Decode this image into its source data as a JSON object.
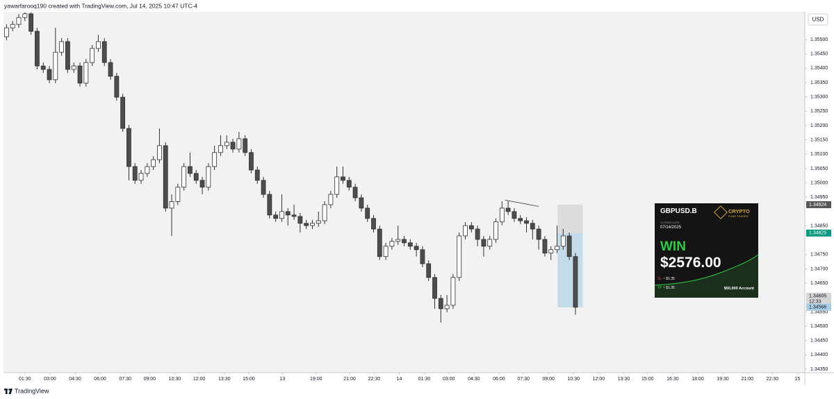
{
  "header": "yawarfarooq190 created with TradingView.com, Jul 14, 2025 10:47 UTC-4",
  "footer": "TradingView",
  "chart_data": {
    "type": "candlestick",
    "currency": "USD",
    "up_color": "#ffffff",
    "down_color": "#4d4d4d",
    "outline_color": "#2f2f2f",
    "grid": false,
    "xlim": [
      0,
      131
    ],
    "ylim": [
      1.34338,
      1.35597
    ],
    "xticks": [
      {
        "value": 3.5,
        "label": "01:30"
      },
      {
        "value": 7.6,
        "label": "03:00"
      },
      {
        "value": 11.7,
        "label": "04:30"
      },
      {
        "value": 15.8,
        "label": "06:00"
      },
      {
        "value": 19.9,
        "label": "07:30"
      },
      {
        "value": 23.9,
        "label": "09:00"
      },
      {
        "value": 28,
        "label": "10:30"
      },
      {
        "value": 32,
        "label": "12:00"
      },
      {
        "value": 36.1,
        "label": "13:30"
      },
      {
        "value": 40.1,
        "label": "15:00"
      },
      {
        "value": 45.6,
        "label": "13"
      },
      {
        "value": 51.1,
        "label": "19:00"
      },
      {
        "value": 56.6,
        "label": "21:00"
      },
      {
        "value": 60.6,
        "label": "22:30"
      },
      {
        "value": 64.7,
        "label": "14"
      },
      {
        "value": 68.8,
        "label": "01:30"
      },
      {
        "value": 72.8,
        "label": "03:00"
      },
      {
        "value": 76.9,
        "label": "04:30"
      },
      {
        "value": 81,
        "label": "06:00"
      },
      {
        "value": 85,
        "label": "07:30"
      },
      {
        "value": 89.1,
        "label": "09:00"
      },
      {
        "value": 93.2,
        "label": "10:30"
      },
      {
        "value": 97.3,
        "label": "12:00"
      },
      {
        "value": 101.4,
        "label": "13:30"
      },
      {
        "value": 105.3,
        "label": "15:00"
      },
      {
        "value": 109.4,
        "label": "16:30"
      },
      {
        "value": 113.5,
        "label": "18:00"
      },
      {
        "value": 117.6,
        "label": "19:30"
      },
      {
        "value": 121.6,
        "label": "21:00"
      },
      {
        "value": 125.7,
        "label": "22:30"
      },
      {
        "value": 129.8,
        "label": "15"
      }
    ],
    "yticks": [
      {
        "value": 1.355,
        "label": "1.35500"
      },
      {
        "value": 1.3545,
        "label": "1.35450"
      },
      {
        "value": 1.354,
        "label": "1.35400"
      },
      {
        "value": 1.3535,
        "label": "1.35350"
      },
      {
        "value": 1.353,
        "label": "1.35300"
      },
      {
        "value": 1.3525,
        "label": "1.35250"
      },
      {
        "value": 1.352,
        "label": "1.35200"
      },
      {
        "value": 1.3515,
        "label": "1.35150"
      },
      {
        "value": 1.351,
        "label": "1.35100"
      },
      {
        "value": 1.3505,
        "label": "1.35050"
      },
      {
        "value": 1.35,
        "label": "1.35000"
      },
      {
        "value": 1.3495,
        "label": "1.34950"
      },
      {
        "value": 1.3485,
        "label": "1.34850"
      },
      {
        "value": 1.3475,
        "label": "1.34750"
      },
      {
        "value": 1.347,
        "label": "1.34700"
      },
      {
        "value": 1.3465,
        "label": "1.34650"
      },
      {
        "value": 1.3455,
        "label": "1.34550"
      },
      {
        "value": 1.345,
        "label": "1.34500"
      },
      {
        "value": 1.3445,
        "label": "1.34450"
      },
      {
        "value": 1.344,
        "label": "1.34400"
      },
      {
        "value": 1.3435,
        "label": "1.34350"
      }
    ],
    "x": [
      0.5,
      1.5,
      2.5,
      3.5,
      4.5,
      5.5,
      6.5,
      7.5,
      8.5,
      9.5,
      10.5,
      11.5,
      12.5,
      13.5,
      14.5,
      15.5,
      16.5,
      17.5,
      18.5,
      19.5,
      20.5,
      21.5,
      22.5,
      23.5,
      24.5,
      25.5,
      26.5,
      27.5,
      28.5,
      29.5,
      30.5,
      31.5,
      32.5,
      33.5,
      34.5,
      35.5,
      36.5,
      37.5,
      38.5,
      39.5,
      40.5,
      41.5,
      42.5,
      43.5,
      44.5,
      45.5,
      46.5,
      47.5,
      48.5,
      49.5,
      50.5,
      51.5,
      52.5,
      53.5,
      54.5,
      55.5,
      56.5,
      57.5,
      58.5,
      59.5,
      60.5,
      61.5,
      62.5,
      63.5,
      64.5,
      65.5,
      66.5,
      67.5,
      68.5,
      69.5,
      70.5,
      71.5,
      72.5,
      73.5,
      74.5,
      75.5,
      76.5,
      77.5,
      78.5,
      79.5,
      80.5,
      81.5,
      82.5,
      83.5,
      84.5,
      85.5,
      86.5,
      87.5,
      88.5,
      89.5,
      90.5,
      91.5,
      92.5,
      93.5
    ],
    "open": [
      1.3551,
      1.35541,
      1.35553,
      1.35577,
      1.3559,
      1.35529,
      1.35408,
      1.35396,
      1.3536,
      1.35456,
      1.35493,
      1.35396,
      1.35408,
      1.35348,
      1.3542,
      1.35469,
      1.35493,
      1.3542,
      1.35372,
      1.35299,
      1.3519,
      1.35057,
      1.35009,
      1.35033,
      1.35057,
      1.35081,
      1.3513,
      1.34912,
      1.34935,
      1.34985,
      1.35057,
      1.35033,
      1.35009,
      1.34985,
      1.35057,
      1.35106,
      1.3513,
      1.35142,
      1.35118,
      1.35154,
      1.35106,
      1.35045,
      1.35009,
      1.3496,
      1.34888,
      1.34876,
      1.349,
      1.34888,
      1.34883,
      1.34859,
      1.34851,
      1.34859,
      1.34868,
      1.34924,
      1.3496,
      1.35021,
      1.35009,
      1.34985,
      1.34948,
      1.34912,
      1.34876,
      1.34839,
      1.34743,
      1.34779,
      1.34796,
      1.34803,
      1.34791,
      1.34779,
      1.34767,
      1.34718,
      1.3467,
      1.34597,
      1.34561,
      1.34573,
      1.3467,
      1.34815,
      1.34851,
      1.34839,
      1.34803,
      1.34779,
      1.34803,
      1.34864,
      1.34912,
      1.349,
      1.34876,
      1.34868,
      1.34859,
      1.34839,
      1.34803,
      1.34755,
      1.34767,
      1.34779,
      1.34815,
      1.34743
    ],
    "high": [
      1.35553,
      1.35565,
      1.35589,
      1.35595,
      1.35595,
      1.35541,
      1.3542,
      1.35408,
      1.35541,
      1.35505,
      1.35505,
      1.3542,
      1.3542,
      1.35432,
      1.35481,
      1.35517,
      1.35505,
      1.35432,
      1.35384,
      1.35311,
      1.35202,
      1.35069,
      1.35045,
      1.35069,
      1.35093,
      1.3519,
      1.35142,
      1.3496,
      1.34997,
      1.35069,
      1.35106,
      1.35045,
      1.35021,
      1.35069,
      1.3513,
      1.35166,
      1.35166,
      1.35154,
      1.35178,
      1.35166,
      1.35118,
      1.35057,
      1.35021,
      1.34972,
      1.349,
      1.3496,
      1.34912,
      1.34924,
      1.34895,
      1.34871,
      1.34871,
      1.349,
      1.34936,
      1.34972,
      1.35057,
      1.35057,
      1.35021,
      1.34997,
      1.3496,
      1.34924,
      1.34888,
      1.34851,
      1.34791,
      1.34808,
      1.34851,
      1.34815,
      1.34803,
      1.34791,
      1.34779,
      1.3473,
      1.34682,
      1.34609,
      1.34609,
      1.34682,
      1.34827,
      1.34863,
      1.34863,
      1.34851,
      1.34815,
      1.34815,
      1.34876,
      1.34936,
      1.34936,
      1.34912,
      1.34888,
      1.3488,
      1.34871,
      1.34851,
      1.34815,
      1.34779,
      1.34851,
      1.3484,
      1.34827,
      1.34755
    ],
    "low": [
      1.35498,
      1.35529,
      1.35541,
      1.35565,
      1.35517,
      1.35396,
      1.35384,
      1.35348,
      1.35348,
      1.35444,
      1.35384,
      1.35384,
      1.35336,
      1.35336,
      1.35408,
      1.35457,
      1.35408,
      1.3536,
      1.35287,
      1.35178,
      1.35009,
      1.34997,
      1.34997,
      1.35021,
      1.35045,
      1.35069,
      1.349,
      1.34815,
      1.34923,
      1.34973,
      1.35021,
      1.34997,
      1.3496,
      1.34973,
      1.35045,
      1.35094,
      1.35118,
      1.35106,
      1.35106,
      1.35094,
      1.35033,
      1.34997,
      1.34948,
      1.34876,
      1.34864,
      1.34864,
      1.34851,
      1.34871,
      1.34827,
      1.34839,
      1.34839,
      1.34847,
      1.34856,
      1.34912,
      1.34948,
      1.34997,
      1.34973,
      1.34936,
      1.349,
      1.34864,
      1.34827,
      1.34731,
      1.34731,
      1.34767,
      1.34784,
      1.34779,
      1.34767,
      1.34743,
      1.34706,
      1.34658,
      1.34561,
      1.34513,
      1.34549,
      1.34561,
      1.34658,
      1.34803,
      1.34827,
      1.34779,
      1.34743,
      1.34767,
      1.34791,
      1.34852,
      1.34888,
      1.34864,
      1.34856,
      1.34827,
      1.34803,
      1.34767,
      1.34743,
      1.34731,
      1.34755,
      1.34767,
      1.34731,
      1.3454
    ],
    "close": [
      1.35541,
      1.35553,
      1.35577,
      1.3559,
      1.35529,
      1.35408,
      1.35396,
      1.3536,
      1.35456,
      1.35493,
      1.35396,
      1.35408,
      1.35348,
      1.3542,
      1.35469,
      1.35493,
      1.3542,
      1.35372,
      1.35299,
      1.3519,
      1.35057,
      1.35009,
      1.35033,
      1.35057,
      1.35081,
      1.3513,
      1.34912,
      1.34935,
      1.34985,
      1.35057,
      1.35033,
      1.35009,
      1.34985,
      1.35057,
      1.35106,
      1.3513,
      1.35142,
      1.35118,
      1.35154,
      1.35106,
      1.35045,
      1.35009,
      1.3496,
      1.34888,
      1.34876,
      1.349,
      1.34888,
      1.34883,
      1.34859,
      1.34851,
      1.34859,
      1.34868,
      1.34924,
      1.3496,
      1.35021,
      1.35009,
      1.34985,
      1.34948,
      1.34912,
      1.34876,
      1.34839,
      1.34743,
      1.34779,
      1.34796,
      1.34803,
      1.34791,
      1.34779,
      1.34767,
      1.34718,
      1.3467,
      1.34597,
      1.34561,
      1.34573,
      1.3467,
      1.34815,
      1.34851,
      1.34839,
      1.34803,
      1.34779,
      1.34803,
      1.34864,
      1.34912,
      1.349,
      1.34876,
      1.34868,
      1.34859,
      1.34839,
      1.34803,
      1.34755,
      1.34767,
      1.34779,
      1.34815,
      1.34743,
      1.34566
    ],
    "position": {
      "x": [
        90.6,
        94.7
      ],
      "stop": 1.34924,
      "entry": 1.34825,
      "target": 1.34566
    },
    "trend_line": {
      "x": [
        82,
        87.5
      ],
      "y": [
        1.3494,
        1.34918
      ]
    },
    "price_labels": [
      {
        "value": 1.34924,
        "color": "#575757",
        "text_color": "#ffffff"
      },
      {
        "value": 1.34825,
        "color": "#089981",
        "text_color": "#ffffff"
      },
      {
        "value": 1.34605,
        "color": "#d6d6d6",
        "text_color": "#131722"
      },
      {
        "value": 1.34566,
        "color": "#a9cde2",
        "text_color": "#131722"
      }
    ],
    "countdown": "12:33"
  },
  "card": {
    "symbol": "GBPUSD.B",
    "brand_top": "CRYPTO",
    "brand_bottom": "FUND TRADER",
    "closed_label": "CLOSED DATE",
    "date": "07/14/2025",
    "result": "WIN",
    "amount": "$2576.00",
    "sl_label": "SL",
    "sl": "~ $1.35",
    "tp_label": "TP",
    "tp": "~ $1.35",
    "account": "$50,000 Account"
  }
}
